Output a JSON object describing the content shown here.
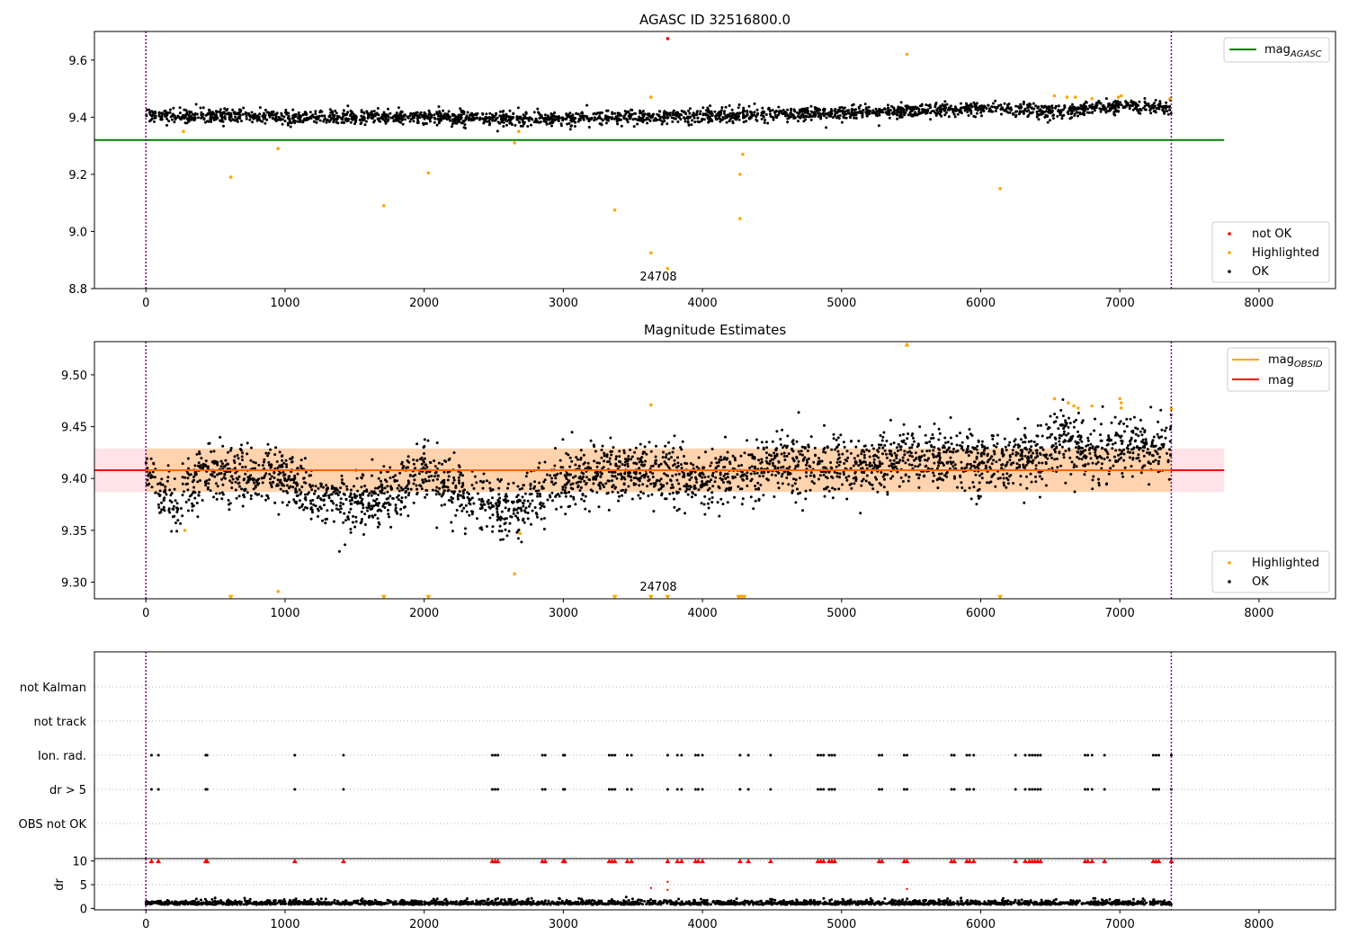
{
  "chart_data": [
    {
      "type": "scatter",
      "title": "AGASC ID 32516800.0",
      "xlim": [
        -370,
        8550
      ],
      "ylim": [
        8.8,
        9.7
      ],
      "x_ticks": [
        0,
        1000,
        2000,
        3000,
        4000,
        5000,
        6000,
        7000,
        8000
      ],
      "y_ticks": [
        8.8,
        9.0,
        9.2,
        9.4,
        9.6
      ],
      "y_tick_labels": [
        "8.8",
        "9.0",
        "9.2",
        "9.4",
        "9.6"
      ],
      "vlines": [
        0,
        7370
      ],
      "obsid_label": {
        "text": "24708",
        "x": 3670,
        "y": 8.83
      },
      "reference_lines": [
        {
          "name": "mag_AGASC",
          "value": 9.32,
          "x_range": [
            -370,
            7750
          ],
          "color": "#008000"
        }
      ],
      "band": {
        "center": 9.405,
        "noise": 0.012,
        "trend": [
          [
            0,
            9.405
          ],
          [
            2000,
            9.4
          ],
          [
            3000,
            9.395
          ],
          [
            5000,
            9.415
          ],
          [
            6000,
            9.43
          ],
          [
            6500,
            9.42
          ],
          [
            7000,
            9.44
          ],
          [
            7370,
            9.435
          ]
        ],
        "point_count": 2400,
        "series": "OK"
      },
      "series": [
        {
          "name": "not OK",
          "color": "#ff0000",
          "points": [
            [
              3750,
              9.675
            ]
          ]
        },
        {
          "name": "Highlighted",
          "color": "#ffa500",
          "points": [
            [
              270,
              9.35
            ],
            [
              610,
              9.19
            ],
            [
              950,
              9.29
            ],
            [
              1710,
              9.09
            ],
            [
              2030,
              9.205
            ],
            [
              2650,
              9.31
            ],
            [
              2680,
              9.35
            ],
            [
              3370,
              9.075
            ],
            [
              3630,
              9.47
            ],
            [
              3630,
              8.925
            ],
            [
              3750,
              8.87
            ],
            [
              4270,
              9.045
            ],
            [
              4270,
              9.2
            ],
            [
              4290,
              9.27
            ],
            [
              5470,
              9.62
            ],
            [
              6140,
              9.15
            ],
            [
              6530,
              9.475
            ],
            [
              6620,
              9.47
            ],
            [
              6680,
              9.47
            ],
            [
              6800,
              9.465
            ],
            [
              6990,
              9.47
            ],
            [
              7010,
              9.475
            ],
            [
              7360,
              9.465
            ]
          ]
        }
      ],
      "legends": [
        {
          "entries": [
            {
              "label_main": "mag",
              "label_sub": "AGASC",
              "marker": "line",
              "color": "#008000"
            }
          ],
          "placement": "upper right"
        },
        {
          "entries": [
            {
              "label": "not OK",
              "marker": "dot",
              "color": "#ff0000"
            },
            {
              "label": "Highlighted",
              "marker": "dot",
              "color": "#ffa500"
            },
            {
              "label": "OK",
              "marker": "dot",
              "color": "#000000"
            }
          ],
          "placement": "lower right"
        }
      ]
    },
    {
      "type": "scatter",
      "title": "Magnitude Estimates",
      "xlim": [
        -370,
        8550
      ],
      "ylim": [
        9.284,
        9.532
      ],
      "x_ticks": [
        0,
        1000,
        2000,
        3000,
        4000,
        5000,
        6000,
        7000,
        8000
      ],
      "y_ticks": [
        9.3,
        9.35,
        9.4,
        9.45,
        9.5
      ],
      "y_tick_labels": [
        "9.30",
        "9.35",
        "9.40",
        "9.45",
        "9.50"
      ],
      "vlines": [
        0,
        7370
      ],
      "obsid_label": {
        "text": "24708",
        "x": 3670,
        "y": 9.289
      },
      "reference_lines": [
        {
          "name": "mag",
          "value": 9.408,
          "x_range": [
            -370,
            7750
          ],
          "color": "#ff0000"
        }
      ],
      "shaded_band": {
        "y_range": [
          9.387,
          9.429
        ],
        "x_range": [
          -370,
          7750
        ],
        "color": "#ffc0cb"
      },
      "obsid_band": {
        "y_range": [
          9.387,
          9.429
        ],
        "x_range": [
          0,
          7370
        ],
        "color": "#ffa500"
      },
      "band": {
        "center": 9.405,
        "noise": 0.014,
        "trend": [
          [
            0,
            9.408
          ],
          [
            200,
            9.37
          ],
          [
            400,
            9.405
          ],
          [
            1000,
            9.4
          ],
          [
            1200,
            9.38
          ],
          [
            1600,
            9.375
          ],
          [
            2000,
            9.405
          ],
          [
            2300,
            9.38
          ],
          [
            2650,
            9.37
          ],
          [
            3000,
            9.4
          ],
          [
            3500,
            9.41
          ],
          [
            4000,
            9.395
          ],
          [
            4500,
            9.415
          ],
          [
            5000,
            9.41
          ],
          [
            5500,
            9.42
          ],
          [
            6000,
            9.415
          ],
          [
            6400,
            9.42
          ],
          [
            6600,
            9.44
          ],
          [
            6800,
            9.42
          ],
          [
            7000,
            9.43
          ],
          [
            7370,
            9.43
          ]
        ],
        "point_count": 3000,
        "series": "OK"
      },
      "series": [
        {
          "name": "Highlighted",
          "color": "#ffa500",
          "points": [
            [
              280,
              9.35
            ],
            [
              950,
              9.291
            ],
            [
              2650,
              9.308
            ],
            [
              2690,
              9.347
            ],
            [
              3630,
              9.471
            ],
            [
              6530,
              9.477
            ],
            [
              6630,
              9.473
            ],
            [
              6670,
              9.47
            ],
            [
              6700,
              9.468
            ],
            [
              6800,
              9.47
            ],
            [
              7000,
              9.477
            ],
            [
              7010,
              9.473
            ],
            [
              7010,
              9.468
            ],
            [
              7370,
              9.467
            ]
          ]
        },
        {
          "name": "Highlighted (below range)",
          "color": "#ffa500",
          "marker": "triangle-down",
          "points": [
            [
              610,
              9.286
            ],
            [
              1710,
              9.286
            ],
            [
              2030,
              9.286
            ],
            [
              3370,
              9.286
            ],
            [
              3630,
              9.286
            ],
            [
              3750,
              9.286
            ],
            [
              4260,
              9.286
            ],
            [
              4280,
              9.286
            ],
            [
              4300,
              9.286
            ],
            [
              6140,
              9.286
            ]
          ]
        },
        {
          "name": "Highlighted (above range)",
          "color": "#ffa500",
          "marker": "triangle-up",
          "points": [
            [
              5470,
              9.529
            ]
          ]
        }
      ],
      "legends": [
        {
          "entries": [
            {
              "label_main": "mag",
              "label_sub": "OBSID",
              "marker": "line",
              "color": "#ffa500"
            },
            {
              "label": "mag",
              "marker": "line",
              "color": "#ff0000"
            }
          ],
          "placement": "upper right"
        },
        {
          "entries": [
            {
              "label": "Highlighted",
              "marker": "dot",
              "color": "#ffa500"
            },
            {
              "label": "OK",
              "marker": "dot",
              "color": "#000000"
            }
          ],
          "placement": "lower right"
        }
      ]
    },
    {
      "type": "scatter",
      "title": "",
      "xlim": [
        -370,
        8550
      ],
      "categories": [
        "not Kalman",
        "not track",
        "Ion. rad.",
        "dr > 5",
        "OBS not OK"
      ],
      "flag_times": [
        40,
        90,
        430,
        440,
        1070,
        1420,
        2490,
        2510,
        2530,
        2850,
        2870,
        3000,
        3010,
        3330,
        3350,
        3370,
        3460,
        3490,
        3750,
        3820,
        3850,
        3950,
        3970,
        4000,
        4270,
        4330,
        4490,
        4830,
        4850,
        4870,
        4910,
        4930,
        4950,
        5270,
        5290,
        5450,
        5470,
        5790,
        5810,
        5900,
        5920,
        5950,
        6250,
        6320,
        6350,
        6370,
        6390,
        6410,
        6430,
        6750,
        6770,
        6800,
        6890,
        7240,
        7260,
        7280,
        7370
      ],
      "flag_rows": [
        "Ion. rad.",
        "dr > 5"
      ],
      "vlines": [
        0,
        7370
      ]
    },
    {
      "type": "scatter",
      "title": "",
      "xlim": [
        -370,
        8550
      ],
      "ylim": [
        -0.3,
        10.5
      ],
      "x_ticks": [
        0,
        1000,
        2000,
        3000,
        4000,
        5000,
        6000,
        7000,
        8000
      ],
      "y_ticks": [
        0,
        5,
        10
      ],
      "y_tick_labels": [
        "0",
        "5",
        "10"
      ],
      "ylabel": "dr",
      "vlines": [
        0,
        7370
      ],
      "dr_band": {
        "center": 0.8,
        "noise": 0.5,
        "point_count": 2200
      },
      "series": [
        {
          "name": "not OK",
          "color": "#ff0000",
          "points": [
            [
              3630,
              4.3
            ],
            [
              3750,
              5.6
            ],
            [
              3750,
              3.9
            ],
            [
              5470,
              4.1
            ]
          ]
        },
        {
          "name": "clipped (above range)",
          "color": "#ff0000",
          "marker": "triangle-up",
          "at_y": 9.9
        }
      ]
    }
  ]
}
